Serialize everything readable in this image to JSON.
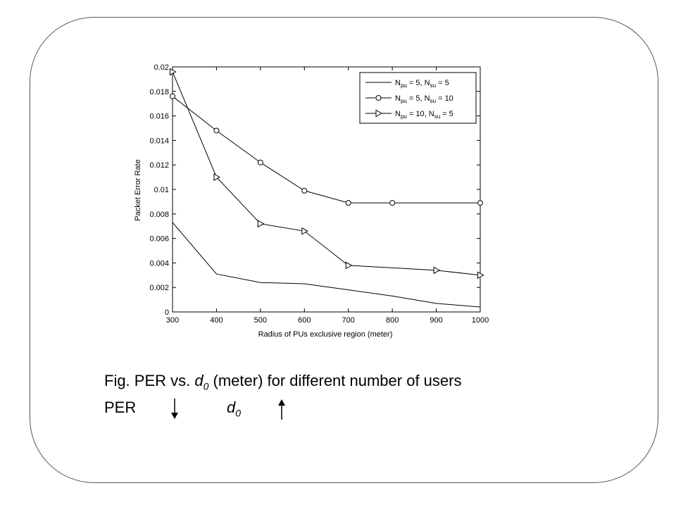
{
  "caption": {
    "fig_prefix": "Fig.  PER vs. ",
    "d0_var": "d",
    "d0_sub": "0",
    "fig_suffix": " (meter) for different number of users",
    "per_label": "PER",
    "per_arrow": "down",
    "d0_arrow": "up"
  },
  "chart_data": {
    "type": "line",
    "title": "",
    "xlabel": "Radius of PUs exclusive region (meter)",
    "ylabel": "Packet Error Rate",
    "xlim": [
      300,
      1000
    ],
    "ylim": [
      0,
      0.02
    ],
    "xticks": [
      300,
      400,
      500,
      600,
      700,
      800,
      900,
      1000
    ],
    "yticks": [
      0,
      0.002,
      0.004,
      0.006,
      0.008,
      0.01,
      0.012,
      0.014,
      0.016,
      0.018,
      0.02
    ],
    "ytick_labels": [
      "0",
      "0.002",
      "0.004",
      "0.006",
      "0.008",
      "0.01",
      "0.012",
      "0.014",
      "0.016",
      "0.018",
      "0.02"
    ],
    "legend_position": "top-right",
    "grid": false,
    "series": [
      {
        "legend_parts": [
          "N",
          "pu",
          " = 5, N",
          "su",
          " = 5"
        ],
        "marker": "none",
        "color": "#000000",
        "x": [
          300,
          400,
          500,
          600,
          700,
          800,
          900,
          1000
        ],
        "y": [
          0.0073,
          0.0031,
          0.0024,
          0.0023,
          0.0018,
          0.0013,
          0.0007,
          0.0004
        ]
      },
      {
        "legend_parts": [
          "N",
          "pu",
          " = 5, N",
          "su",
          " = 10"
        ],
        "marker": "circle",
        "color": "#000000",
        "x": [
          300,
          400,
          500,
          600,
          700,
          800,
          1000
        ],
        "y": [
          0.0176,
          0.0148,
          0.0122,
          0.0099,
          0.0089,
          0.0089,
          0.0089
        ]
      },
      {
        "legend_parts": [
          "N",
          "pu",
          " = 10, N",
          "su",
          " = 5"
        ],
        "marker": "triangle-right",
        "color": "#000000",
        "x": [
          300,
          400,
          500,
          600,
          700,
          900,
          1000
        ],
        "y": [
          0.0196,
          0.011,
          0.0072,
          0.0066,
          0.0038,
          0.0034,
          0.003
        ]
      }
    ]
  }
}
